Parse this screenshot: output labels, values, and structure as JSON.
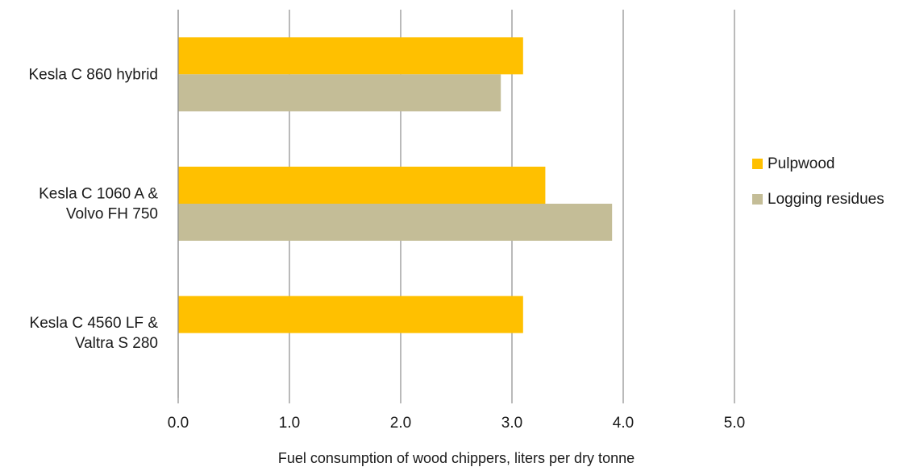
{
  "chart_data": {
    "type": "bar",
    "orientation": "horizontal",
    "categories": [
      [
        "Kesla C 860 hybrid"
      ],
      [
        "Kesla C 1060 A  &",
        "Volvo FH 750"
      ],
      [
        "Kesla C 4560 LF &",
        "Valtra S 280"
      ]
    ],
    "series": [
      {
        "name": "Pulpwood",
        "color": "#FFC000",
        "values": [
          3.1,
          3.3,
          3.1
        ]
      },
      {
        "name": "Logging residues",
        "color": "#C4BD97",
        "values": [
          2.9,
          3.9,
          null
        ]
      }
    ],
    "xlabel": "Fuel consumption of wood chippers, liters per dry tonne",
    "xlim": [
      0,
      5
    ],
    "xticks": [
      "0.0",
      "1.0",
      "2.0",
      "3.0",
      "4.0",
      "5.0"
    ],
    "grid": "vertical",
    "legend_position": "right"
  }
}
